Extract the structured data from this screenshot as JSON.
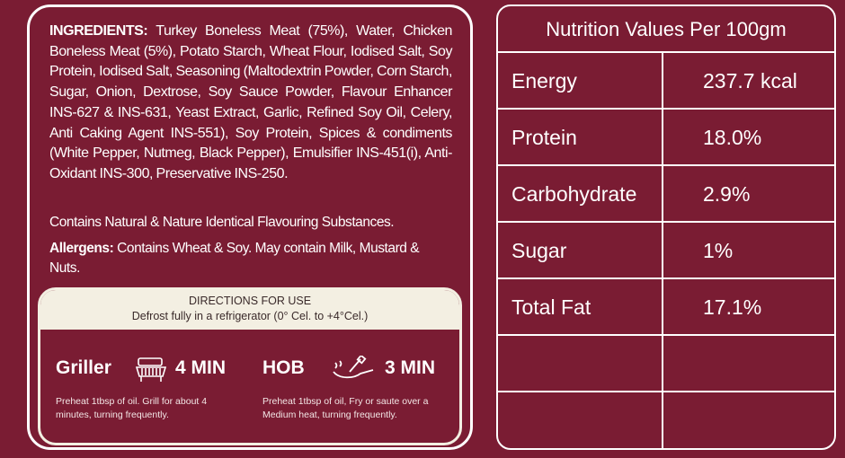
{
  "ingredients": {
    "label": "INGREDIENTS:",
    "text": " Turkey Boneless Meat (75%), Water, Chicken Boneless Meat (5%), Potato Starch, Wheat Flour, Iodised Salt, Soy Protein, Iodised Salt, Seasoning (Maltodextrin Powder, Corn Starch, Sugar, Onion, Dextrose, Soy Sauce Powder, Flavour Enhancer INS-627 & INS-631, Yeast Extract, Garlic, Refined Soy Oil, Celery, Anti Caking Agent INS-551), Soy Protein, Spices & condiments (White Pepper, Nutmeg, Black Pepper), Emulsifier INS-451(i), Anti-Oxidant INS-300, Preservative INS-250.",
    "flavouring": "Contains Natural & Nature Identical Flavouring Substances.",
    "allergens_label": "Allergens:",
    "allergens_text": " Contains Wheat & Soy. May contain Milk, Mustard & Nuts."
  },
  "directions": {
    "title": "DIRECTIONS FOR USE",
    "defrost": "Defrost fully in a refrigerator (0° Cel. to +4°Cel.)",
    "griller": {
      "name": "Griller",
      "time": "4 MIN",
      "desc": "Preheat 1tbsp of oil. Grill for about 4 minutes,  turning frequently.",
      "icon": "grill-icon"
    },
    "hob": {
      "name": "HOB",
      "time": "3 MIN",
      "desc": "Preheat 1tbsp of oil, Fry or saute over a Medium heat, turning frequently.",
      "icon": "frying-pan-icon"
    }
  },
  "nutrition": {
    "title": "Nutrition Values Per 100gm",
    "rows": [
      {
        "name": "Energy",
        "value": "237.7 kcal"
      },
      {
        "name": "Protein",
        "value": "18.0%"
      },
      {
        "name": "Carbohydrate",
        "value": "2.9%"
      },
      {
        "name": "Sugar",
        "value": "1%"
      },
      {
        "name": "Total Fat",
        "value": "17.1%"
      },
      {
        "name": "",
        "value": ""
      },
      {
        "name": "",
        "value": ""
      }
    ]
  },
  "colors": {
    "background": "#7a1c33",
    "cream": "#f3efe2"
  }
}
